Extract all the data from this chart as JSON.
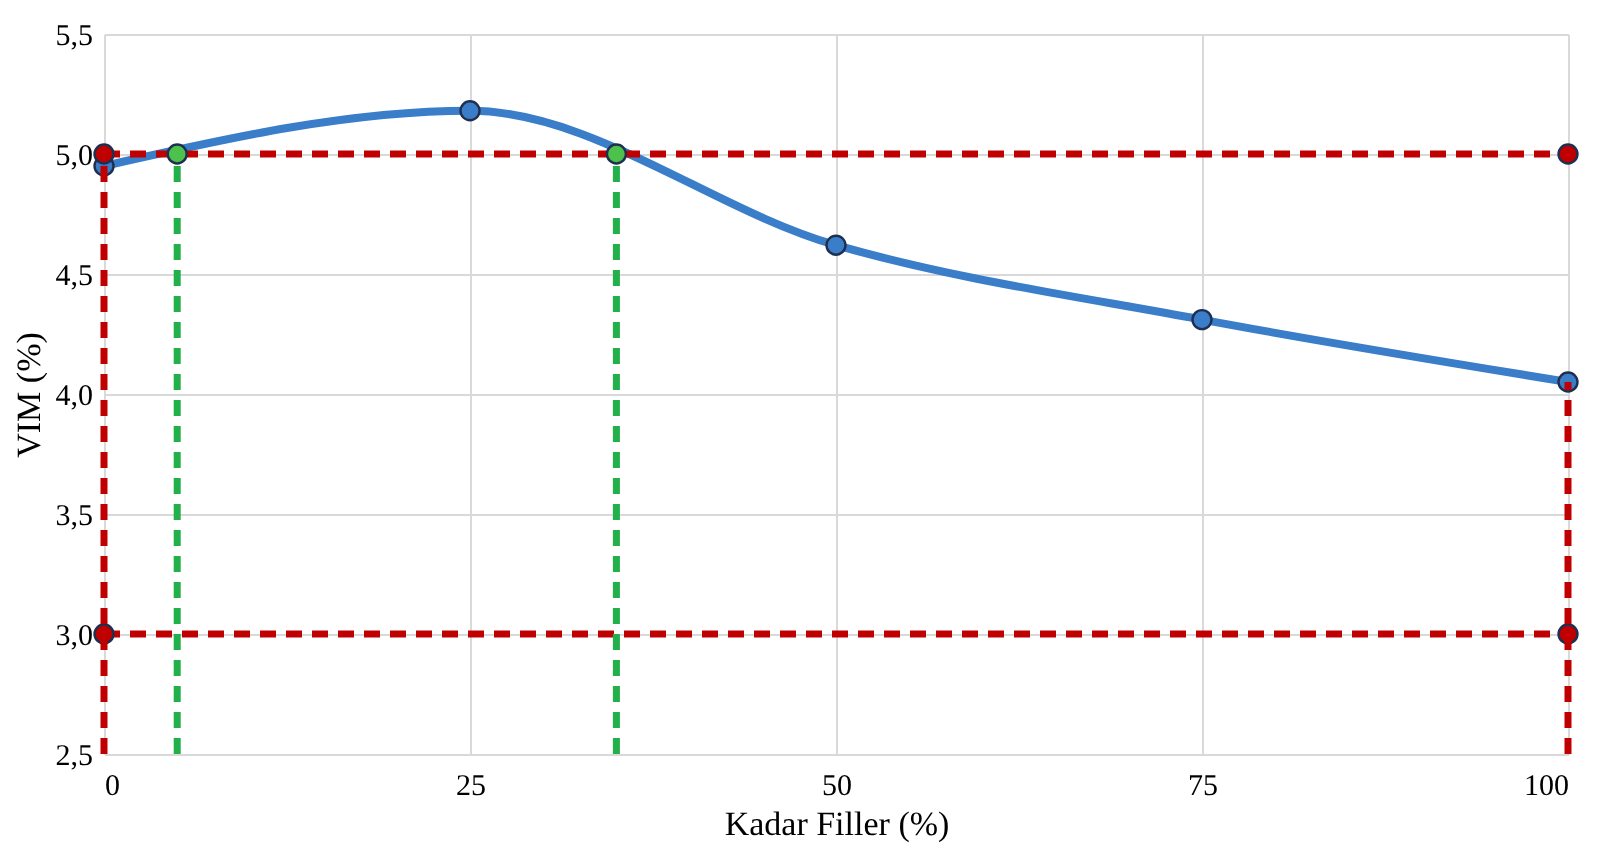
{
  "chart_data": {
    "type": "line",
    "xlabel": "Kadar Filler (%)",
    "ylabel": "VIM (%)",
    "xlim": [
      0,
      100
    ],
    "xticks": [
      0,
      25,
      50,
      75,
      100
    ],
    "ylim": [
      2.5,
      5.5
    ],
    "yticks": [
      {
        "value": 2.5,
        "label": "2,5"
      },
      {
        "value": 3,
        "label": "3,0"
      },
      {
        "value": 3.5,
        "label": "3,5"
      },
      {
        "value": 4,
        "label": "4,0"
      },
      {
        "value": 4.5,
        "label": "4,5"
      },
      {
        "value": 5,
        "label": "5,0"
      },
      {
        "value": 5.5,
        "label": "5,5"
      }
    ],
    "grid": true,
    "series": [
      {
        "color": "#3a7dc9",
        "x": [
          0,
          25,
          50,
          75,
          100
        ],
        "values": [
          4.95,
          5.18,
          4.62,
          4.31,
          4.05
        ],
        "marker": "circle",
        "line_style": "solid"
      },
      {
        "color": "#c00000",
        "x": [
          0,
          100
        ],
        "values": [
          5,
          5
        ],
        "marker": "circle",
        "line_style": "dashed"
      },
      {
        "color": "#c00000",
        "x": [
          0,
          100
        ],
        "values": [
          3,
          3
        ],
        "marker": "circle",
        "line_style": "dashed"
      },
      {
        "color": "#c00000",
        "x": [
          0,
          0
        ],
        "values": [
          2.5,
          5
        ],
        "marker": "none",
        "line_style": "dashed"
      },
      {
        "color": "#c00000",
        "x": [
          100,
          100
        ],
        "values": [
          2.5,
          4.05
        ],
        "marker": "none",
        "line_style": "dashed"
      },
      {
        "color": "#22b04b",
        "x": [
          5,
          5
        ],
        "values": [
          2.5,
          5
        ],
        "marker": "none",
        "line_style": "dashed"
      },
      {
        "color": "#22b04b",
        "x": [
          35,
          35
        ],
        "values": [
          2.5,
          5
        ],
        "marker": "none",
        "line_style": "dashed"
      },
      {
        "type": "scatter",
        "color": "#4cc24c",
        "x": [
          5,
          35
        ],
        "values": [
          5,
          5
        ],
        "marker": "circle"
      }
    ]
  }
}
